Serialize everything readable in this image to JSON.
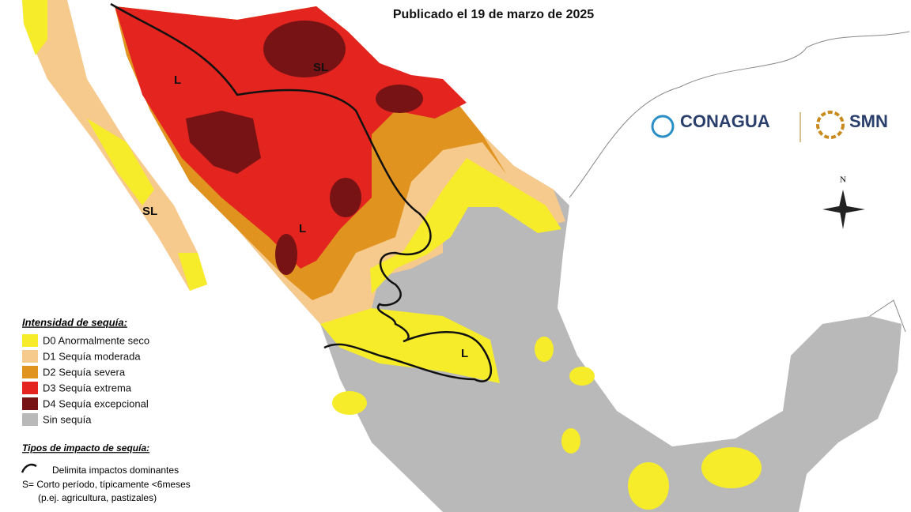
{
  "header": {
    "subtitle": "Publicado el 19 de marzo de 2025"
  },
  "logos": {
    "conagua": "CONAGUA",
    "smn": "SMN"
  },
  "compass": "N",
  "legend": {
    "title": "Intensidad de sequía:",
    "items": [
      {
        "label": "D0 Anormalmente seco",
        "color": "#f6ec2a"
      },
      {
        "label": "D1 Sequía moderada",
        "color": "#f6c98c"
      },
      {
        "label": "D2 Sequía severa",
        "color": "#e0931f"
      },
      {
        "label": "D3 Sequía extrema",
        "color": "#e3241f"
      },
      {
        "label": "D4 Sequía excepcional",
        "color": "#781315"
      },
      {
        "label": "Sin sequía",
        "color": "#b9b9b9"
      }
    ]
  },
  "impact": {
    "title": "Tipos de impacto de sequía:",
    "boundary": "Delimita impactos dominantes",
    "short": "S= Corto período, típicamente <6meses",
    "short_example": "(p.ej. agricultura, pastizales)"
  },
  "map_labels": [
    "L",
    "SL",
    "SL",
    "L",
    "L"
  ]
}
